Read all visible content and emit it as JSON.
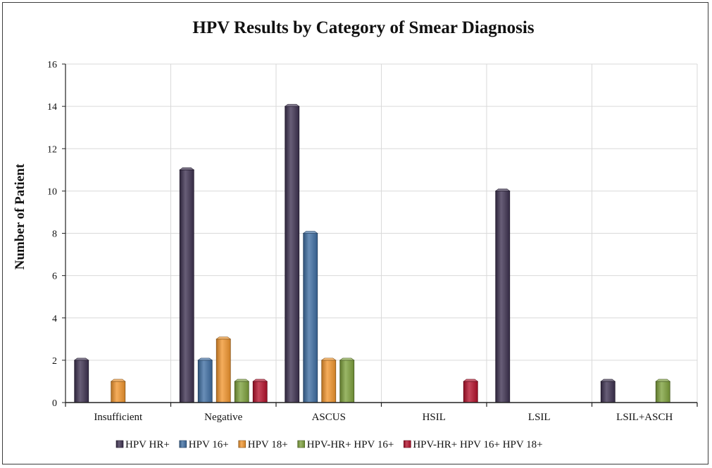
{
  "chart_data": {
    "type": "bar",
    "title": "HPV Results by Category of Smear Diagnosis",
    "xlabel": "",
    "ylabel": "Number of Patient",
    "ylim": [
      0,
      16
    ],
    "yticks": [
      0,
      2,
      4,
      6,
      8,
      10,
      12,
      14,
      16
    ],
    "grid": true,
    "legend_position": "bottom",
    "categories": [
      "Insufficient",
      "Negative",
      "ASCUS",
      "HSIL",
      "LSIL",
      "LSIL+ASCH"
    ],
    "series": [
      {
        "name": "HPV HR+",
        "color": "#3d3150",
        "values": [
          2,
          11,
          14,
          0,
          10,
          1
        ]
      },
      {
        "name": "HPV 16+",
        "color": "#3f6ea3",
        "values": [
          0,
          2,
          8,
          0,
          0,
          0
        ]
      },
      {
        "name": "HPV 18+",
        "color": "#f2962e",
        "values": [
          1,
          3,
          2,
          0,
          0,
          0
        ]
      },
      {
        "name": "HPV-HR+ HPV 16+",
        "color": "#7ea13c",
        "values": [
          0,
          1,
          2,
          0,
          0,
          1
        ]
      },
      {
        "name": "HPV-HR+ HPV 16+ HPV 18+",
        "color": "#b5112c",
        "values": [
          0,
          1,
          0,
          1,
          0,
          0
        ]
      }
    ]
  }
}
